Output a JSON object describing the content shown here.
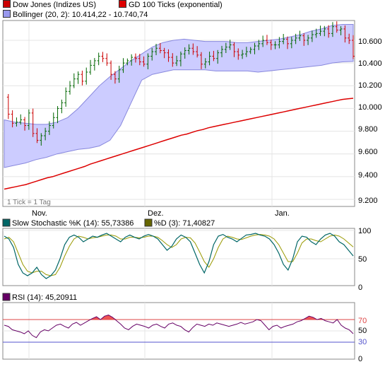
{
  "main_panel": {
    "legend": [
      {
        "label": "Dow Jones (Indizes US)",
        "color": "#cc0000"
      },
      {
        "label": "GD 100 Ticks (exponential)",
        "color": "#dd0000"
      },
      {
        "label": "Bollinger (20, 2): 10.414,22 - 10.740,74",
        "color": "#9999ee"
      }
    ],
    "y_ticks": [
      "10.600",
      "10.400",
      "10.200",
      "10.000",
      "9.800",
      "9.600",
      "9.400",
      "9.200"
    ],
    "x_ticks": [
      "Nov.",
      "Dez.",
      "Jan."
    ],
    "note": "1 Tick = 1 Tag"
  },
  "stoch_panel": {
    "legend": [
      {
        "label": "Slow Stochastic %K (14): 55,73386",
        "color": "#006666"
      },
      {
        "label": "%D (3): 71,40827",
        "color": "#666600"
      }
    ],
    "y_ticks": [
      "100",
      "50",
      "0"
    ]
  },
  "rsi_panel": {
    "legend": [
      {
        "label": "RSI (14): 45,20911",
        "color": "#660066"
      }
    ],
    "y_ticks": [
      "70",
      "50",
      "30",
      "0"
    ]
  },
  "chart_data": [
    {
      "type": "candlestick",
      "series": [
        {
          "name": "Dow Jones (Indizes US)",
          "close": [
            10100,
            9950,
            9870,
            9880,
            9900,
            9850,
            9960,
            9780,
            9720,
            9760,
            9800,
            9850,
            9920,
            10000,
            10050,
            10150,
            10200,
            10260,
            10300,
            10240,
            10320,
            10380,
            10420,
            10460,
            10440,
            10400,
            10300,
            10260,
            10340,
            10400,
            10420,
            10450,
            10440,
            10410,
            10390,
            10460,
            10500,
            10530,
            10510,
            10490,
            10450,
            10400,
            10420,
            10480,
            10510,
            10530,
            10500,
            10470,
            10390,
            10410,
            10460,
            10440,
            10490,
            10520,
            10540,
            10560,
            10500,
            10470,
            10480,
            10500,
            10520,
            10550,
            10570,
            10600,
            10580,
            10560,
            10560,
            10590,
            10610,
            10570,
            10600,
            10620,
            10640,
            10600,
            10620,
            10650,
            10660,
            10680,
            10700,
            10660,
            10720,
            10690,
            10700,
            10620,
            10600,
            10460
          ]
        },
        {
          "name": "GD 100 Ticks (exponential)",
          "values": [
            9290,
            9300,
            9310,
            9320,
            9330,
            9345,
            9360,
            9375,
            9390,
            9400,
            9415,
            9430,
            9445,
            9460,
            9475,
            9490,
            9510,
            9525,
            9540,
            9555,
            9570,
            9585,
            9600,
            9615,
            9630,
            9645,
            9660,
            9675,
            9690,
            9705,
            9720,
            9735,
            9750,
            9765,
            9775,
            9790,
            9805,
            9815,
            9830,
            9840,
            9850,
            9860,
            9870,
            9880,
            9890,
            9900,
            9910,
            9920,
            9930,
            9940,
            9950,
            9960,
            9970,
            9980,
            9990,
            10000,
            10010,
            10020,
            10030,
            10040,
            10050,
            10060,
            10070,
            10080,
            10085,
            10090
          ]
        },
        {
          "name": "Bollinger (20, 2)",
          "upper": [
            9900,
            9880,
            9870,
            9860,
            9860,
            9880,
            9920,
            10000,
            10100,
            10200,
            10280,
            10350,
            10420,
            10480,
            10540,
            10580,
            10600,
            10610,
            10600,
            10590,
            10590,
            10590,
            10580,
            10580,
            10590,
            10600,
            10610,
            10630,
            10650,
            10680,
            10700,
            10730,
            10740,
            10740
          ],
          "lower": [
            9480,
            9500,
            9520,
            9550,
            9570,
            9600,
            9620,
            9640,
            9650,
            9670,
            9720,
            9850,
            10050,
            10250,
            10300,
            10320,
            10340,
            10340,
            10340,
            10340,
            10330,
            10330,
            10330,
            10330,
            10320,
            10330,
            10340,
            10350,
            10360,
            10370,
            10380,
            10400,
            10410,
            10414
          ]
        }
      ],
      "y_range": [
        9200,
        10800
      ]
    },
    {
      "type": "line",
      "series": [
        {
          "name": "Slow Stochastic %K (14)",
          "values": [
            90,
            85,
            70,
            40,
            25,
            20,
            25,
            35,
            22,
            15,
            20,
            30,
            50,
            75,
            88,
            92,
            88,
            80,
            85,
            90,
            88,
            92,
            95,
            90,
            85,
            80,
            88,
            92,
            88,
            85,
            90,
            93,
            90,
            85,
            75,
            65,
            72,
            85,
            92,
            88,
            80,
            60,
            40,
            25,
            45,
            75,
            90,
            93,
            88,
            85,
            80,
            86,
            92,
            93,
            95,
            92,
            90,
            85,
            75,
            60,
            40,
            30,
            50,
            80,
            90,
            88,
            80,
            75,
            85,
            92,
            95,
            90,
            80,
            75,
            65,
            55
          ]
        },
        {
          "name": "%D (3)",
          "values": [
            85,
            88,
            80,
            60,
            40,
            28,
            25,
            28,
            28,
            22,
            20,
            22,
            35,
            55,
            72,
            85,
            90,
            88,
            85,
            87,
            88,
            90,
            92,
            92,
            90,
            85,
            85,
            88,
            88,
            87,
            88,
            90,
            90,
            88,
            82,
            75,
            70,
            75,
            85,
            88,
            87,
            78,
            62,
            45,
            35,
            50,
            70,
            85,
            90,
            88,
            85,
            84,
            87,
            90,
            92,
            93,
            92,
            90,
            85,
            75,
            60,
            45,
            45,
            60,
            78,
            85,
            85,
            82,
            80,
            85,
            90,
            92,
            90,
            85,
            78,
            71
          ]
        }
      ],
      "y_range": [
        0,
        100
      ]
    },
    {
      "type": "line",
      "series": [
        {
          "name": "RSI (14)",
          "values": [
            60,
            58,
            52,
            50,
            48,
            45,
            50,
            42,
            38,
            48,
            52,
            50,
            55,
            60,
            62,
            58,
            55,
            62,
            65,
            60,
            64,
            68,
            72,
            75,
            70,
            76,
            78,
            74,
            68,
            62,
            55,
            52,
            58,
            62,
            60,
            58,
            55,
            60,
            62,
            58,
            55,
            62,
            64,
            60,
            58,
            52,
            48,
            56,
            62,
            60,
            58,
            62,
            60,
            64,
            62,
            60,
            58,
            60,
            62,
            65,
            62,
            64,
            66,
            70,
            68,
            60,
            52,
            58,
            60,
            55,
            58,
            60,
            62,
            66,
            68,
            72,
            76,
            74,
            70,
            72,
            68,
            66,
            64,
            70,
            60,
            55,
            52,
            45
          ]
        }
      ],
      "reference_lines": [
        70,
        30
      ],
      "y_range": [
        0,
        100
      ]
    }
  ]
}
